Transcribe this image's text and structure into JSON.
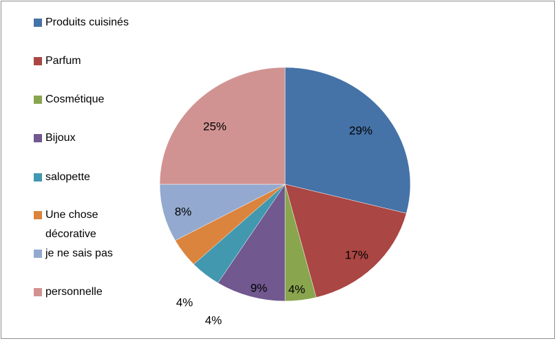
{
  "chart_data": {
    "type": "pie",
    "categories": [
      "Produits cuisinés",
      "Parfum",
      "Cosmétique",
      "Bijoux",
      "salopette",
      "Une chose décorative",
      "je ne sais pas",
      "personnelle"
    ],
    "values": [
      29,
      17,
      4,
      9,
      4,
      4,
      8,
      25
    ],
    "value_labels": [
      "29%",
      "17%",
      "4%",
      "9%",
      "4%",
      "4%",
      "8%",
      "25%"
    ],
    "colors": [
      "#4572a7",
      "#aa4643",
      "#89a54e",
      "#71588f",
      "#4198af",
      "#db843d",
      "#93a9cf",
      "#d19392"
    ],
    "legend": "left"
  }
}
